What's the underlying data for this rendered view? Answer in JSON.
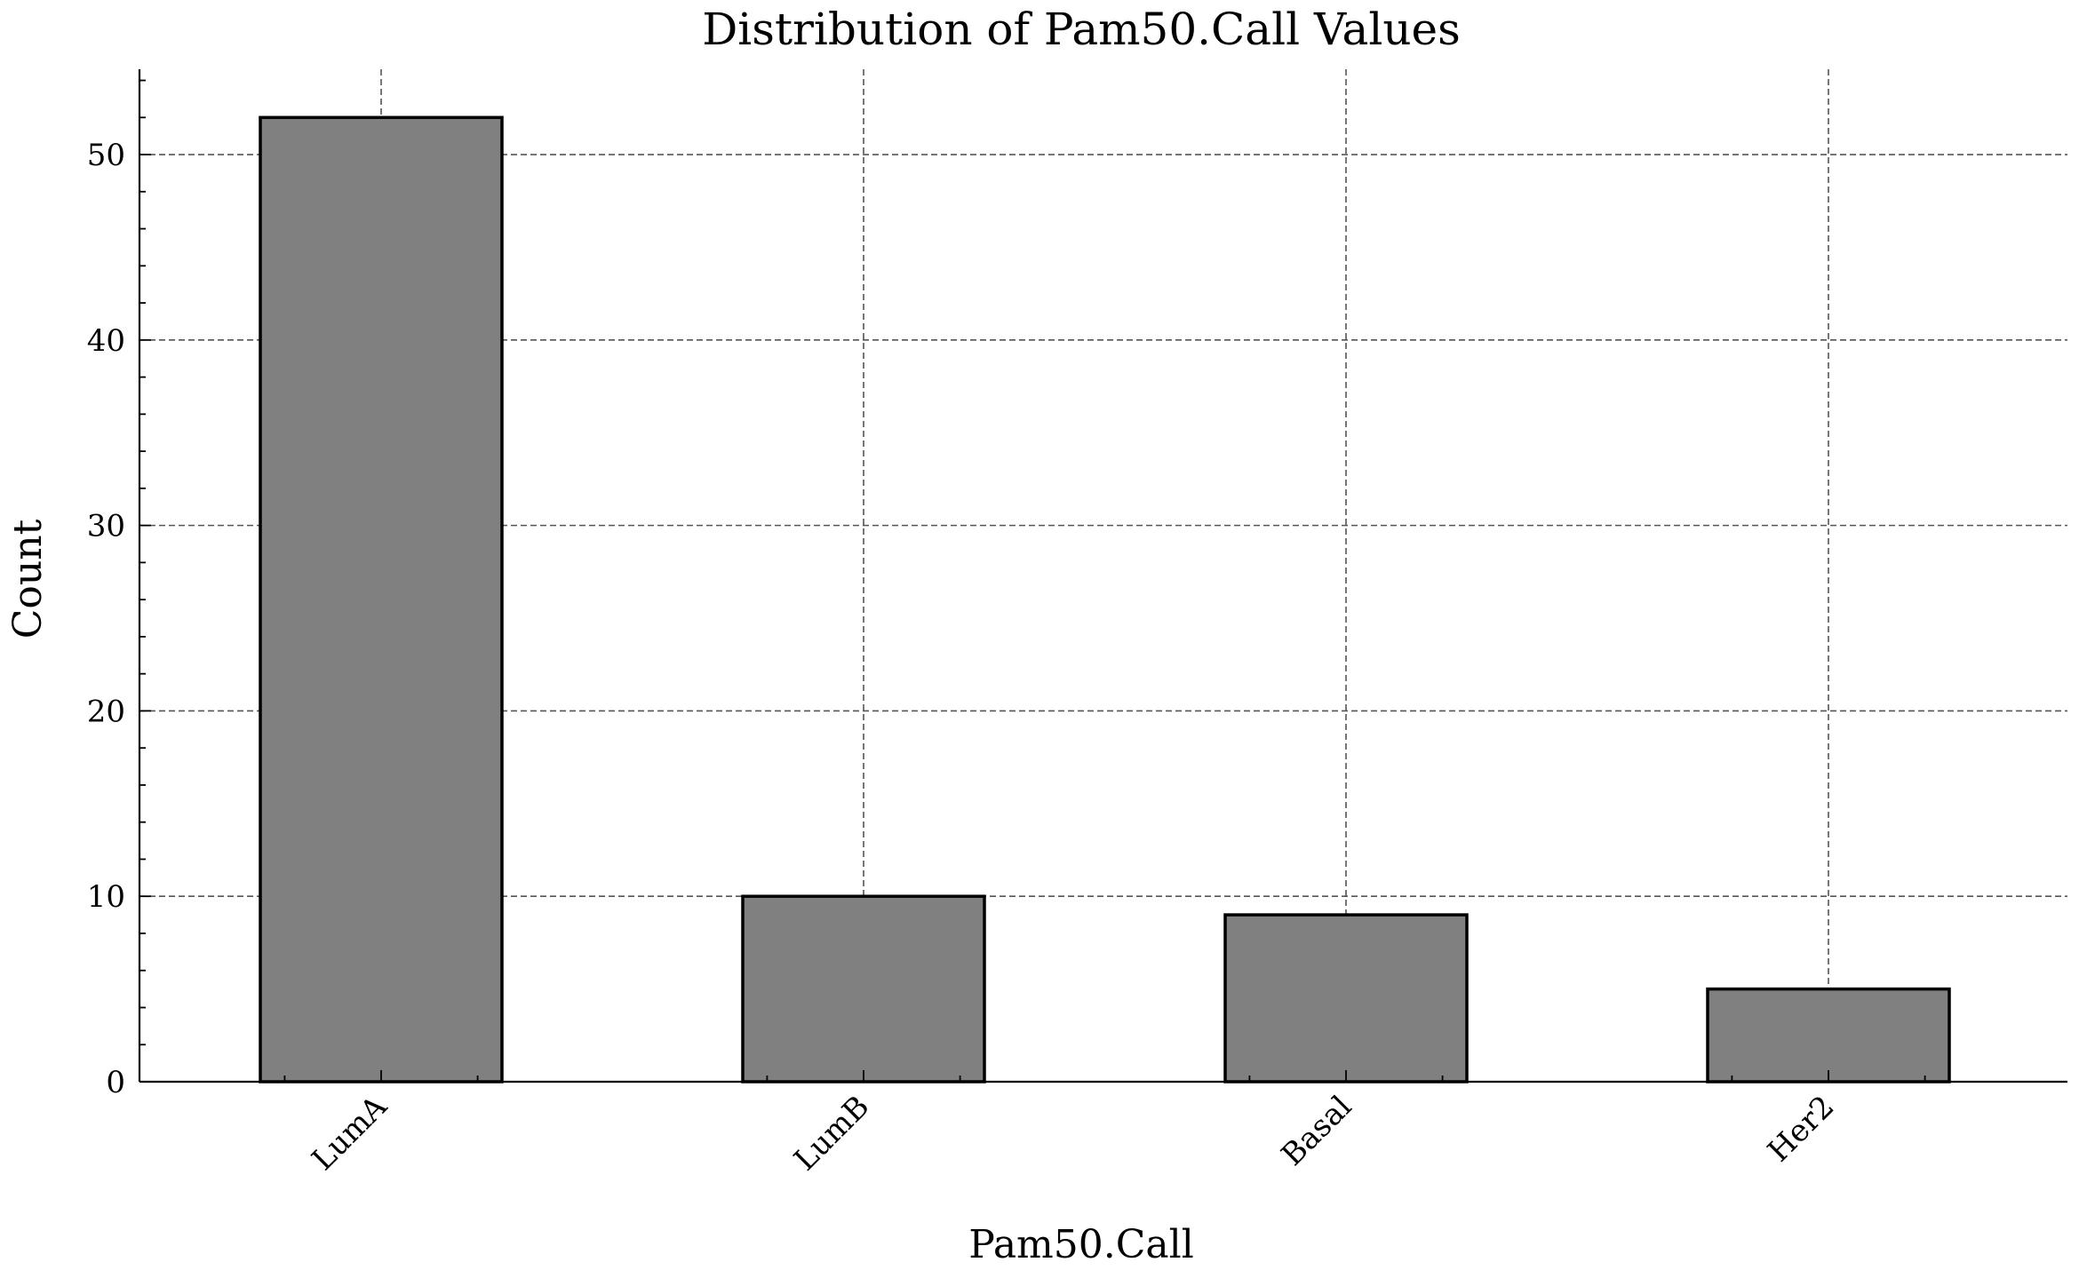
{
  "chart_data": {
    "type": "bar",
    "title": "Distribution of Pam50.Call Values",
    "xlabel": "Pam50.Call",
    "ylabel": "Count",
    "categories": [
      "LumA",
      "LumB",
      "Basal",
      "Her2"
    ],
    "values": [
      52,
      10,
      9,
      5
    ],
    "ylim": [
      0,
      54.6
    ],
    "yticks": [
      0,
      10,
      20,
      30,
      40,
      50
    ],
    "ytick_labels": [
      "0",
      "10",
      "20",
      "30",
      "40",
      "50"
    ],
    "y_minor_step": 2,
    "grid": true,
    "legend": "none",
    "colors": {
      "bar_fill": "#808080",
      "bar_edge": "#000000",
      "grid": "#555555"
    }
  }
}
